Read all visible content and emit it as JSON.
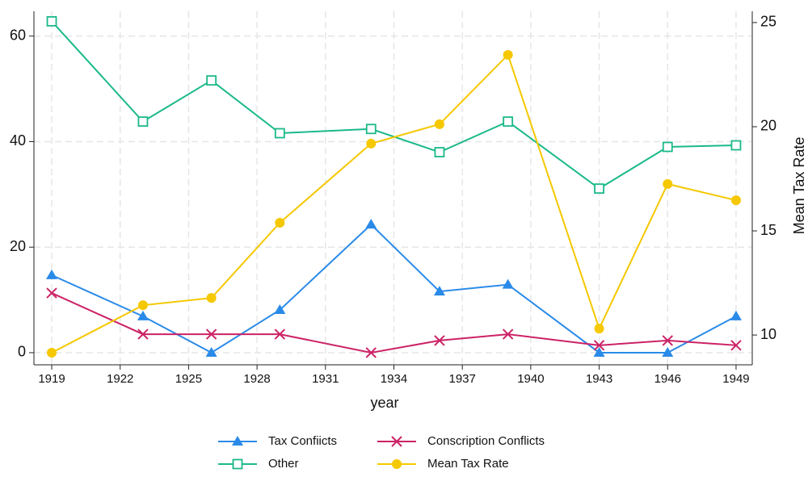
{
  "chart_data": {
    "type": "line",
    "x_label": "year",
    "y2_label": "Mean Tax Rate",
    "x": [
      1919,
      1923,
      1926,
      1929,
      1933,
      1936,
      1939,
      1943,
      1946,
      1949
    ],
    "xlim": [
      1918.22,
      1949.71
    ],
    "xticks": [
      1919,
      1922,
      1925,
      1928,
      1931,
      1934,
      1937,
      1940,
      1943,
      1946,
      1949
    ],
    "ylim": [
      -2.3,
      64.7
    ],
    "yticks": [
      0,
      20,
      40,
      60
    ],
    "y2lim": [
      8.57,
      25.54
    ],
    "y2ticks": [
      10,
      15,
      20,
      25
    ],
    "grid": true,
    "legend": "bottom",
    "series": [
      {
        "name": "Tax Confiicts",
        "color": "#2a8ae8",
        "marker": "triangle",
        "values": [
          14.7,
          6.9,
          0,
          8.1,
          24.3,
          11.6,
          12.9,
          0,
          0,
          6.9
        ]
      },
      {
        "name": "Conscription Conflicts",
        "color": "#cc2266",
        "marker": "cross",
        "values": [
          11.3,
          3.5,
          3.5,
          3.5,
          0,
          2.3,
          3.5,
          1.4,
          2.3,
          1.4
        ]
      },
      {
        "name": "Other",
        "color": "#1bb98a",
        "marker": "square",
        "values": [
          62.8,
          43.8,
          51.6,
          41.6,
          42.4,
          38.0,
          43.8,
          31.1,
          39.0,
          39.3
        ]
      },
      {
        "name": "Mean Tax Rate",
        "color": "#f5c800",
        "marker": "circle",
        "axis": "y2",
        "values": [
          9.15,
          11.43,
          11.78,
          15.39,
          19.19,
          20.12,
          23.45,
          10.31,
          17.25,
          16.47
        ]
      }
    ]
  }
}
